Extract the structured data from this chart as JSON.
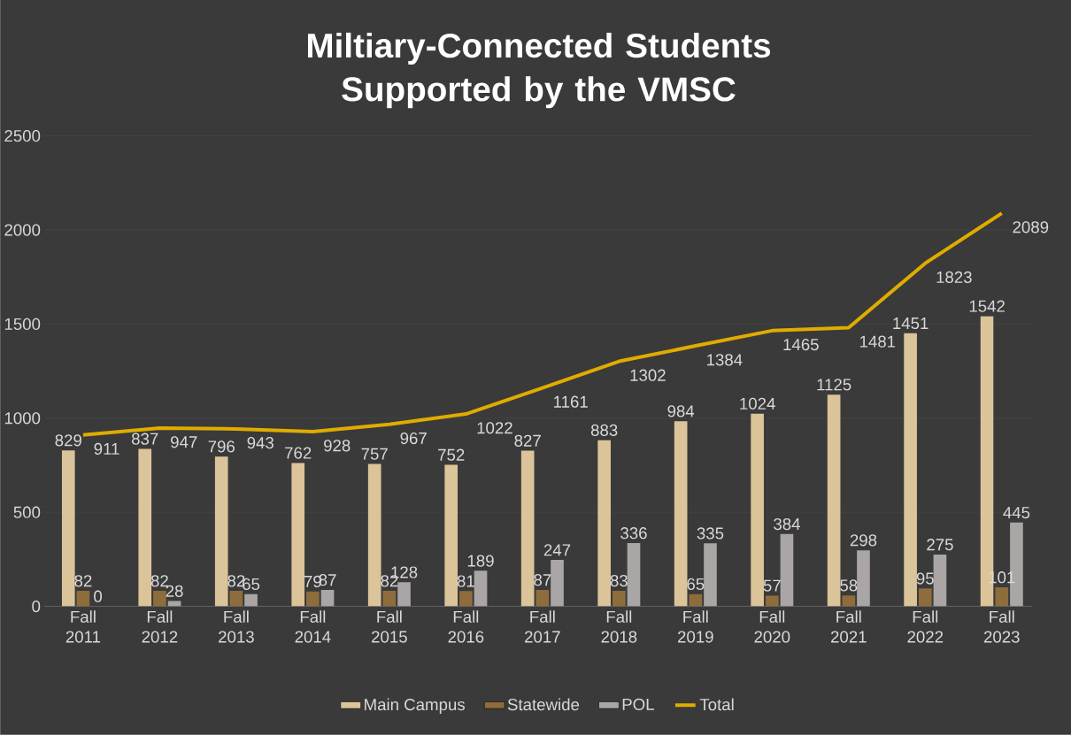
{
  "chart_data": {
    "type": "bar",
    "title": "Miltiary-Connected Students Supported by the VMSC",
    "categories": [
      "Fall 2011",
      "Fall 2012",
      "Fall 2013",
      "Fall 2014",
      "Fall 2015",
      "Fall 2016",
      "Fall 2017",
      "Fall 2018",
      "Fall 2019",
      "Fall 2020",
      "Fall 2021",
      "Fall 2022",
      "Fall 2023"
    ],
    "series": [
      {
        "name": "Main Campus",
        "color": "#dcc49a",
        "values": [
          829,
          837,
          796,
          762,
          757,
          752,
          827,
          883,
          984,
          1024,
          1125,
          1451,
          1542
        ]
      },
      {
        "name": "Statewide",
        "color": "#8f6c3c",
        "values": [
          82,
          82,
          82,
          79,
          82,
          81,
          87,
          83,
          65,
          57,
          58,
          95,
          101
        ]
      },
      {
        "name": "POL",
        "color": "#aaa6a6",
        "values": [
          0,
          28,
          65,
          87,
          128,
          189,
          247,
          336,
          335,
          384,
          298,
          275,
          445
        ]
      },
      {
        "name": "Total",
        "type": "line",
        "color": "#e0ac00",
        "values": [
          911,
          947,
          943,
          928,
          967,
          1022,
          1161,
          1302,
          1384,
          1465,
          1481,
          1823,
          2089
        ]
      }
    ],
    "ylim": [
      0,
      2500
    ],
    "yticks": [
      0,
      500,
      1000,
      1500,
      2000,
      2500
    ],
    "grid": "y",
    "legend": "bottom",
    "data_labels": true
  }
}
